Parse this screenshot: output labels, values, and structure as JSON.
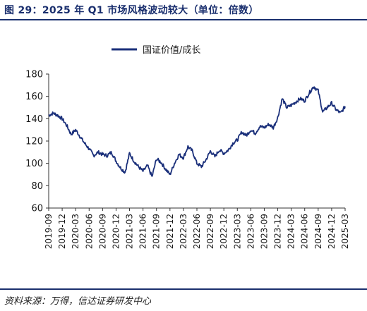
{
  "header": {
    "title": "图 29：2025 年 Q1 市场风格波动较大（单位：倍数）"
  },
  "footer": {
    "source": "资料来源：万得，信达证券研发中心"
  },
  "chart_data": {
    "type": "line",
    "title": "",
    "xlabel": "",
    "ylabel": "",
    "ylim": [
      60,
      180
    ],
    "yticks": [
      60,
      80,
      100,
      120,
      140,
      160,
      180
    ],
    "xticks": [
      "2019-09",
      "2019-12",
      "2020-03",
      "2020-06",
      "2020-09",
      "2020-12",
      "2021-03",
      "2021-06",
      "2021-09",
      "2021-12",
      "2022-03",
      "2022-06",
      "2022-09",
      "2022-12",
      "2023-03",
      "2023-06",
      "2023-09",
      "2023-12",
      "2024-03",
      "2024-06",
      "2024-09",
      "2024-12",
      "2025-03"
    ],
    "xlim": [
      "2019-09",
      "2025-03"
    ],
    "grid": false,
    "legend_position": "top-center",
    "color": "#1a2f7a",
    "series": [
      {
        "name": "国证价值/成长",
        "points": [
          [
            "2019-09",
            143
          ],
          [
            "2019-10",
            145
          ],
          [
            "2019-11",
            143
          ],
          [
            "2019-12",
            140
          ],
          [
            "2020-01",
            134
          ],
          [
            "2020-02",
            126
          ],
          [
            "2020-03",
            130
          ],
          [
            "2020-04",
            124
          ],
          [
            "2020-05",
            118
          ],
          [
            "2020-06",
            113
          ],
          [
            "2020-07",
            107
          ],
          [
            "2020-08",
            110
          ],
          [
            "2020-09",
            108
          ],
          [
            "2020-10",
            107
          ],
          [
            "2020-11",
            110
          ],
          [
            "2020-12",
            102
          ],
          [
            "2021-01",
            96
          ],
          [
            "2021-02",
            92
          ],
          [
            "2021-03",
            109
          ],
          [
            "2021-04",
            102
          ],
          [
            "2021-05",
            97
          ],
          [
            "2021-06",
            93
          ],
          [
            "2021-07",
            98
          ],
          [
            "2021-08",
            88
          ],
          [
            "2021-09",
            104
          ],
          [
            "2021-10",
            101
          ],
          [
            "2021-11",
            95
          ],
          [
            "2021-12",
            90
          ],
          [
            "2022-01",
            100
          ],
          [
            "2022-02",
            108
          ],
          [
            "2022-03",
            105
          ],
          [
            "2022-04",
            115
          ],
          [
            "2022-05",
            111
          ],
          [
            "2022-06",
            100
          ],
          [
            "2022-07",
            97
          ],
          [
            "2022-08",
            103
          ],
          [
            "2022-09",
            111
          ],
          [
            "2022-10",
            106
          ],
          [
            "2022-11",
            112
          ],
          [
            "2022-12",
            109
          ],
          [
            "2023-01",
            112
          ],
          [
            "2023-02",
            118
          ],
          [
            "2023-03",
            121
          ],
          [
            "2023-04",
            128
          ],
          [
            "2023-05",
            125
          ],
          [
            "2023-06",
            130
          ],
          [
            "2023-07",
            127
          ],
          [
            "2023-08",
            133
          ],
          [
            "2023-09",
            132
          ],
          [
            "2023-10",
            135
          ],
          [
            "2023-11",
            132
          ],
          [
            "2023-12",
            141
          ],
          [
            "2024-01",
            158
          ],
          [
            "2024-02",
            150
          ],
          [
            "2024-03",
            152
          ],
          [
            "2024-04",
            155
          ],
          [
            "2024-05",
            158
          ],
          [
            "2024-06",
            156
          ],
          [
            "2024-07",
            163
          ],
          [
            "2024-08",
            169
          ],
          [
            "2024-09",
            165
          ],
          [
            "2024-10",
            146
          ],
          [
            "2024-11",
            150
          ],
          [
            "2024-12",
            154
          ],
          [
            "2025-01",
            148
          ],
          [
            "2025-02",
            145
          ],
          [
            "2025-03",
            151
          ]
        ]
      }
    ]
  }
}
